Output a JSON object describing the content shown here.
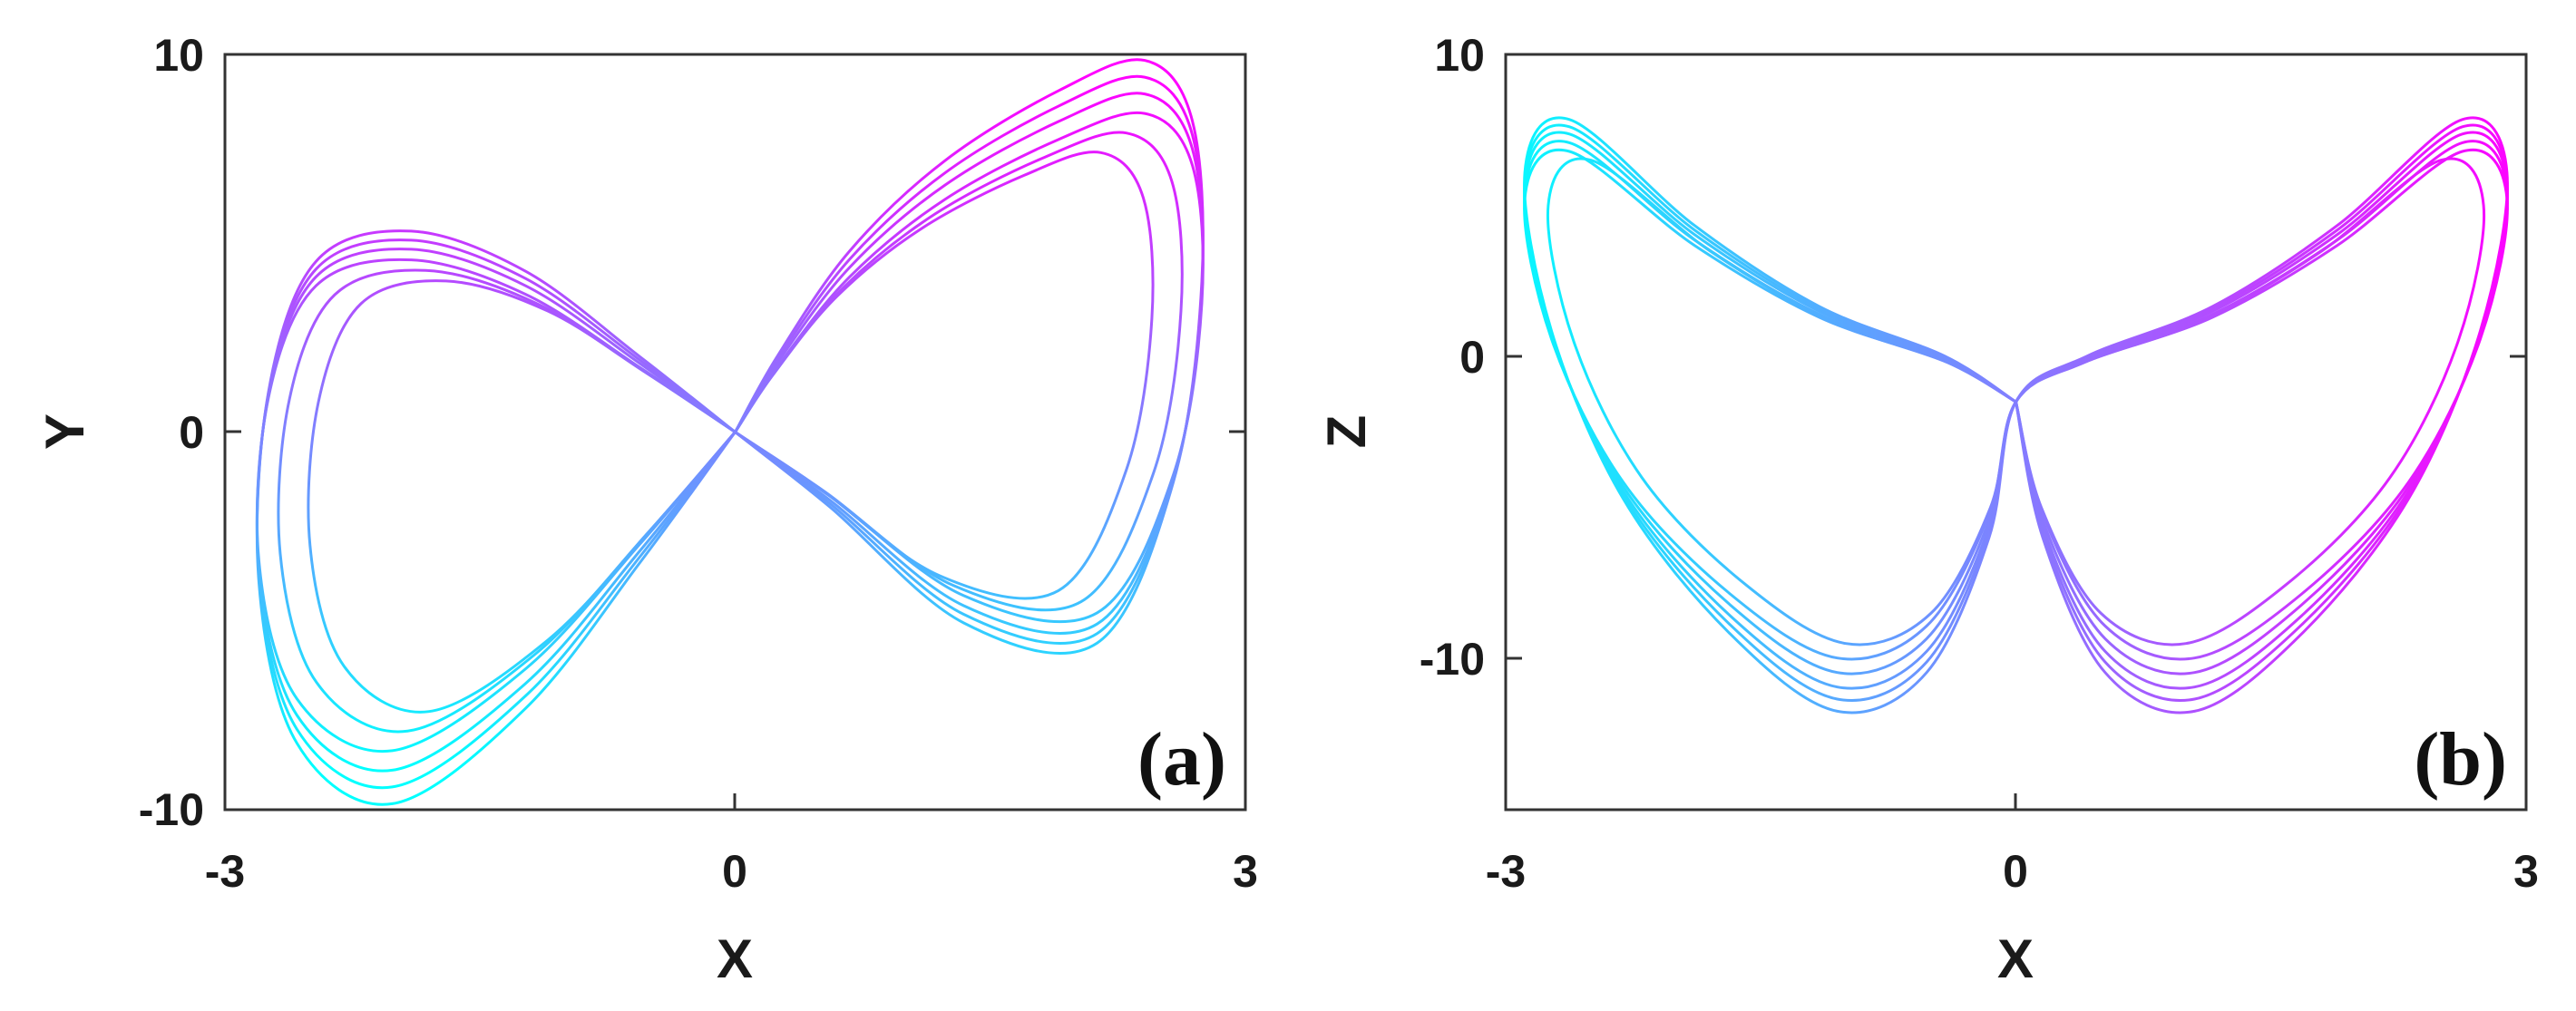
{
  "chart_data": [
    {
      "type": "line",
      "panel_label": "(a)",
      "xlabel": "X",
      "ylabel": "Y",
      "xlim": [
        -3,
        3
      ],
      "ylim": [
        -10,
        10
      ],
      "xticks": [
        "-3",
        "0",
        "3"
      ],
      "yticks": [
        "-10",
        "0",
        "10"
      ],
      "grid": false,
      "colormap": [
        "#00ffff",
        "#ff00ff"
      ],
      "series": [
        {
          "x": [
            0,
            0.22,
            0.6,
            1.1,
            1.7,
            2.15,
            2.4,
            2.45,
            2.3,
            1.9,
            1.2,
            0.5,
            0,
            -0.5,
            -1.1,
            -1.7,
            -2.2,
            -2.45,
            -2.5,
            -2.3,
            -1.8,
            -1.1,
            -0.5,
            0
          ],
          "y": [
            0,
            1.5,
            3.6,
            5.4,
            6.8,
            7.4,
            6.2,
            3.0,
            -1.0,
            -4.2,
            -3.8,
            -1.5,
            0,
            1.5,
            3.2,
            4.0,
            3.4,
            0.8,
            -3.0,
            -6.2,
            -7.4,
            -5.5,
            -2.6,
            0
          ]
        }
      ]
    },
    {
      "type": "line",
      "panel_label": "(b)",
      "xlabel": "X",
      "ylabel": "Z",
      "xlim": [
        -3,
        3
      ],
      "ylim": [
        -15,
        10
      ],
      "xticks": [
        "-3",
        "0",
        "3"
      ],
      "yticks": [
        "-10",
        "0",
        "10"
      ],
      "grid": false,
      "colormap": [
        "#00ffff",
        "#ff00ff"
      ],
      "series": [
        {
          "x": [
            0,
            -0.4,
            -1.1,
            -1.8,
            -2.5,
            -2.75,
            -2.6,
            -2.2,
            -1.6,
            -1.0,
            -0.5,
            -0.15,
            0,
            0.4,
            1.1,
            1.8,
            2.5,
            2.75,
            2.6,
            2.2,
            1.6,
            1.0,
            0.5,
            0.15,
            0
          ],
          "z": [
            -1.5,
            -0.2,
            1.2,
            3.5,
            6.5,
            5.0,
            0.5,
            -4.0,
            -7.5,
            -9.5,
            -8.5,
            -5.0,
            -1.5,
            -0.2,
            1.2,
            3.5,
            6.5,
            5.0,
            0.5,
            -4.0,
            -7.5,
            -9.5,
            -8.5,
            -5.0,
            -1.5
          ]
        }
      ]
    }
  ]
}
